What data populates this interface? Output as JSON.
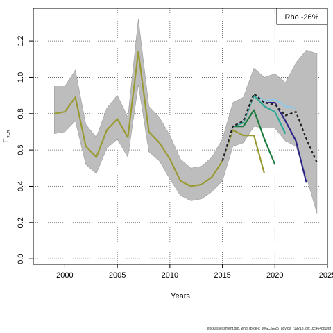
{
  "chart_data": {
    "type": "line",
    "title": "",
    "xlabel": "Years",
    "ylabel": "F",
    "ylabel_sub": "2–5",
    "xlim": [
      1997,
      2025
    ],
    "ylim": [
      -0.03,
      1.38
    ],
    "xticks": [
      2000,
      2005,
      2010,
      2015,
      2020,
      2025
    ],
    "yticks": [
      0.0,
      0.2,
      0.4,
      0.6,
      0.8,
      1.0,
      1.2
    ],
    "ytick_labels": [
      "0.0",
      "0.2",
      "0.4",
      "0.6",
      "0.8",
      "1.0",
      "1.2"
    ],
    "grid": true,
    "legend": {
      "position": "top-right",
      "text": "Rho -26%"
    },
    "band": {
      "x": [
        1999,
        2000,
        2001,
        2002,
        2003,
        2004,
        2005,
        2006,
        2007,
        2008,
        2009,
        2010,
        2011,
        2012,
        2013,
        2014,
        2015,
        2016,
        2017,
        2018,
        2019,
        2020,
        2021,
        2022,
        2023,
        2024
      ],
      "upper": [
        0.95,
        0.95,
        1.04,
        0.74,
        0.67,
        0.83,
        0.9,
        0.78,
        1.32,
        0.84,
        0.78,
        0.68,
        0.55,
        0.5,
        0.51,
        0.56,
        0.66,
        0.86,
        0.89,
        1.05,
        1.0,
        1.02,
        0.97,
        1.08,
        1.15,
        1.13
      ],
      "lower": [
        0.69,
        0.7,
        0.76,
        0.52,
        0.47,
        0.61,
        0.66,
        0.56,
        0.96,
        0.59,
        0.54,
        0.44,
        0.35,
        0.32,
        0.33,
        0.37,
        0.43,
        0.62,
        0.64,
        0.73,
        0.72,
        0.72,
        0.65,
        0.62,
        0.45,
        0.25
      ]
    },
    "series": [
      {
        "color": "#9a9a33",
        "dashed": false,
        "x": [
          1999,
          2000,
          2001,
          2002,
          2003,
          2004,
          2005,
          2006,
          2007,
          2008,
          2009,
          2010,
          2011,
          2012,
          2013,
          2014,
          2015,
          2016,
          2017,
          2018,
          2019
        ],
        "values": [
          0.8,
          0.81,
          0.89,
          0.62,
          0.56,
          0.71,
          0.77,
          0.67,
          1.14,
          0.7,
          0.64,
          0.55,
          0.43,
          0.4,
          0.41,
          0.45,
          0.54,
          0.71,
          0.68,
          0.68,
          0.47
        ]
      },
      {
        "color": "#1e7a3c",
        "dashed": false,
        "x": [
          2015,
          2016,
          2017,
          2018,
          2019,
          2020
        ],
        "values": [
          0.54,
          0.73,
          0.73,
          0.82,
          0.66,
          0.52
        ]
      },
      {
        "color": "#2aa898",
        "dashed": false,
        "x": [
          2015,
          2016,
          2017,
          2018,
          2019,
          2020,
          2021
        ],
        "values": [
          0.54,
          0.73,
          0.75,
          0.9,
          0.84,
          0.81,
          0.69
        ]
      },
      {
        "color": "#8ec9e6",
        "dashed": false,
        "x": [
          2015,
          2016,
          2017,
          2018,
          2019,
          2020,
          2021,
          2022
        ],
        "values": [
          0.54,
          0.73,
          0.76,
          0.91,
          0.87,
          0.88,
          0.84,
          0.83
        ]
      },
      {
        "color": "#2b2585",
        "dashed": false,
        "x": [
          2015,
          2016,
          2017,
          2018,
          2019,
          2020,
          2021,
          2022,
          2023
        ],
        "values": [
          0.54,
          0.73,
          0.76,
          0.91,
          0.86,
          0.86,
          0.76,
          0.65,
          0.42
        ]
      },
      {
        "color": "#222222",
        "dashed": true,
        "x": [
          2015,
          2016,
          2017,
          2018,
          2019,
          2020,
          2021,
          2022,
          2023,
          2024
        ],
        "values": [
          0.54,
          0.73,
          0.76,
          0.91,
          0.86,
          0.85,
          0.79,
          0.81,
          0.66,
          0.53
        ]
      }
    ]
  },
  "footer": "stockassessment.org, whg.7b-ce-k_WGCSE25_advice, r19218, git:1cc464b80f6f"
}
